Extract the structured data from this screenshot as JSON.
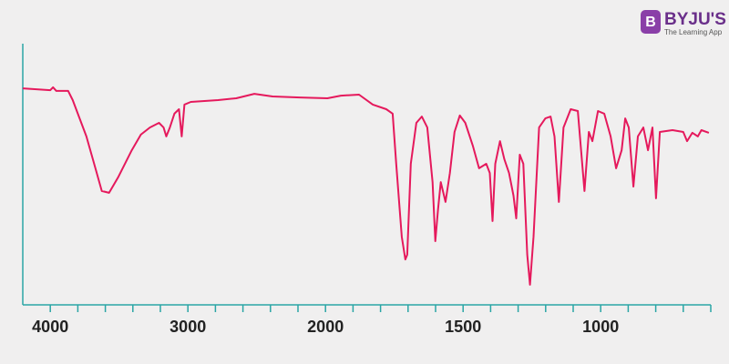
{
  "chart_data": {
    "type": "line",
    "x": [
      4200,
      4000,
      3980,
      3956,
      3870,
      3837,
      3738,
      3672,
      3626,
      3573,
      3507,
      3408,
      3342,
      3276,
      3210,
      3177,
      3157,
      3131,
      3098,
      3065,
      3045,
      3025,
      2979,
      2781,
      2649,
      2517,
      2385,
      2187,
      1993,
      1944,
      1878,
      1828,
      1779,
      1756,
      1743,
      1723,
      1710,
      1703,
      1690,
      1670,
      1650,
      1630,
      1611,
      1601,
      1591,
      1581,
      1564,
      1548,
      1531,
      1512,
      1492,
      1465,
      1442,
      1416,
      1403,
      1393,
      1383,
      1366,
      1350,
      1333,
      1317,
      1307,
      1294,
      1281,
      1267,
      1257,
      1244,
      1224,
      1201,
      1182,
      1168,
      1152,
      1135,
      1109,
      1083,
      1059,
      1043,
      1030,
      1010,
      987,
      964,
      944,
      924,
      911,
      898,
      881,
      865,
      845,
      828,
      812,
      799,
      785,
      739,
      700,
      686,
      667,
      647,
      634,
      607
    ],
    "series": [
      {
        "color": "#e5195c",
        "values": [
          82.9,
          82.2,
          83.3,
          81.9,
          81.9,
          78.4,
          64.5,
          52.3,
          43.6,
          42.9,
          48.8,
          59.2,
          65.2,
          67.9,
          69.7,
          67.9,
          64.5,
          67.9,
          73.2,
          74.9,
          64.5,
          76.7,
          77.7,
          78.4,
          79.1,
          80.8,
          79.8,
          79.4,
          79.1,
          80.1,
          80.5,
          76.7,
          74.9,
          73.2,
          54.0,
          26.1,
          17.4,
          19.2,
          54.0,
          69.7,
          72.1,
          67.9,
          47.0,
          24.4,
          36.6,
          47.0,
          39.4,
          50.5,
          66.2,
          72.5,
          69.7,
          61.0,
          52.3,
          54.0,
          50.5,
          32.1,
          54.0,
          62.7,
          55.7,
          50.5,
          41.8,
          33.1,
          57.5,
          54.0,
          19.2,
          7.7,
          26.1,
          67.9,
          71.4,
          72.1,
          64.5,
          39.4,
          67.9,
          74.9,
          74.2,
          43.6,
          66.2,
          62.7,
          74.2,
          73.2,
          64.5,
          52.3,
          59.2,
          71.4,
          67.9,
          45.3,
          64.5,
          67.9,
          59.2,
          67.9,
          40.8,
          66.2,
          66.9,
          66.2,
          62.7,
          65.9,
          64.5,
          66.9,
          65.9
        ]
      }
    ],
    "xlim": [
      4200,
      600
    ],
    "xscale": {
      "type": "split",
      "break": 2000,
      "ratio": 2
    },
    "xticks": [
      4000,
      3000,
      2000,
      1500,
      1000
    ],
    "xminorticks": [
      3800,
      3600,
      3400,
      3200,
      2800,
      2600,
      2400,
      2200,
      1900,
      1800,
      1700,
      1600,
      1400,
      1300,
      1200,
      1100,
      900,
      800,
      700,
      600
    ],
    "ylim": [
      0,
      100
    ],
    "axis_color": "#2aa5a5"
  },
  "logo": {
    "name": "BYJU'S",
    "tagline": "The Learning App"
  }
}
